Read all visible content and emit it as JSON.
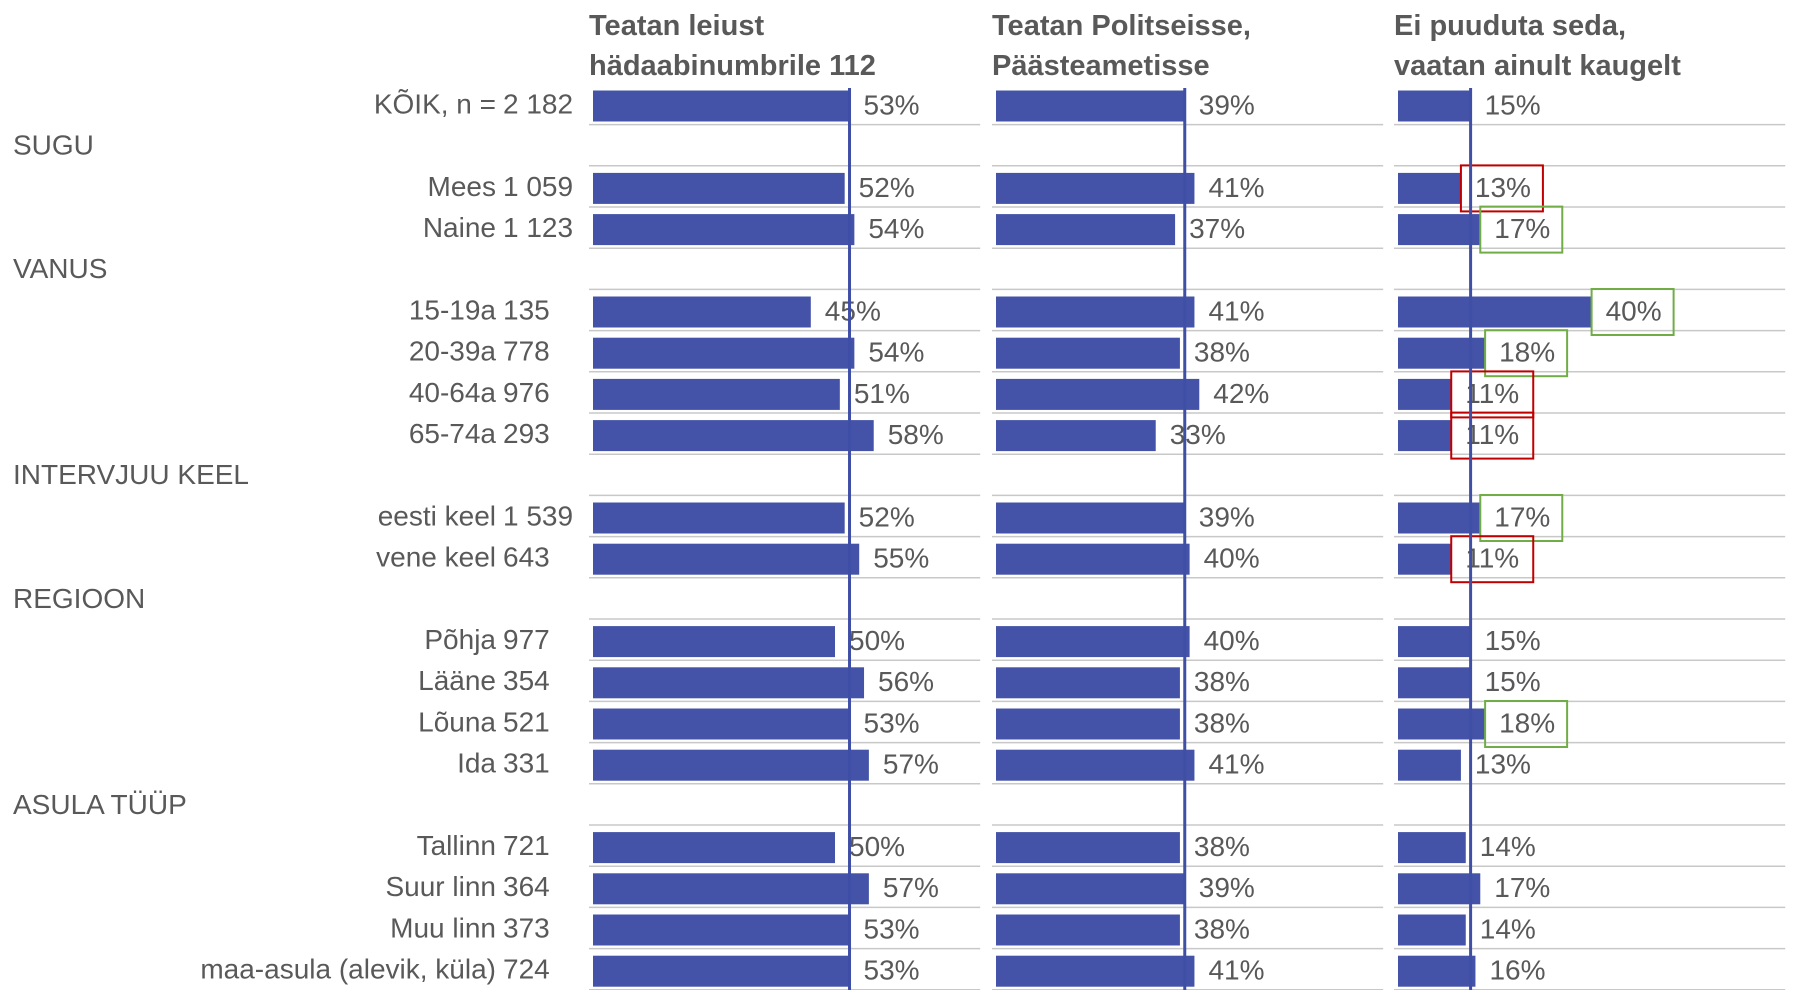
{
  "chart_data": {
    "type": "bar",
    "categories": [
      "KÕIK, n =",
      "SUGU",
      "Mees",
      "Naine",
      "VANUS",
      "15-19a",
      "20-39a",
      "40-64a",
      "65-74a",
      "INTERVJUU KEEL",
      "eesti keel",
      "vene keel",
      "REGIOON",
      "Põhja",
      "Lääne",
      "Lõuna",
      "Ida",
      "ASULA TÜÜP",
      "Tallinn",
      "Suur linn",
      "Muu linn",
      "maa-asula (alevik, küla)"
    ],
    "n": [
      "2 182",
      null,
      "1 059",
      "1 123",
      null,
      "135",
      "778",
      "976",
      "293",
      null,
      "1 539",
      "643",
      null,
      "977",
      "354",
      "521",
      "331",
      null,
      "721",
      "364",
      "373",
      "724"
    ],
    "xlim": [
      0,
      80
    ],
    "series": [
      {
        "name": "Teatan leiust\nhädaabinumbrile 112",
        "color": "#4453a7",
        "values": [
          53,
          null,
          52,
          54,
          null,
          45,
          54,
          51,
          58,
          null,
          52,
          55,
          null,
          50,
          56,
          53,
          57,
          null,
          50,
          57,
          53,
          53
        ],
        "value_labels": [
          "53%",
          null,
          "52%",
          "54%",
          null,
          "45%",
          "54%",
          "51%",
          "58%",
          null,
          "52%",
          "55%",
          null,
          "50%",
          "56%",
          "53%",
          "57%",
          null,
          "50%",
          "57%",
          "53%",
          "53%"
        ]
      },
      {
        "name": "Teatan Politseisse,\nPäästeametisse",
        "color": "#4453a7",
        "values": [
          39,
          null,
          41,
          37,
          null,
          41,
          38,
          42,
          33,
          null,
          39,
          40,
          null,
          40,
          38,
          38,
          41,
          null,
          38,
          39,
          38,
          41
        ],
        "value_labels": [
          "39%",
          null,
          "41%",
          "37%",
          null,
          "41%",
          "38%",
          "42%",
          "33%",
          null,
          "39%",
          "40%",
          null,
          "40%",
          "38%",
          "38%",
          "41%",
          null,
          "38%",
          "39%",
          "38%",
          "41%"
        ]
      },
      {
        "name": "Ei puuduta seda,\nvaatan ainult kaugelt",
        "color": "#4453a7",
        "values": [
          15,
          null,
          13,
          17,
          null,
          40,
          18,
          11,
          11,
          null,
          17,
          11,
          null,
          15,
          15,
          18,
          13,
          null,
          14,
          17,
          14,
          16
        ],
        "value_labels": [
          "15%",
          null,
          "13%",
          "17%",
          null,
          "40%",
          "18%",
          "11%",
          "11%",
          null,
          "17%",
          "11%",
          null,
          "15%",
          "15%",
          "18%",
          "13%",
          null,
          "14%",
          "17%",
          "14%",
          "16%"
        ],
        "box_colors": [
          null,
          null,
          "#c00000",
          "#70ad47",
          null,
          "#70ad47",
          "#70ad47",
          "#c00000",
          "#c00000",
          null,
          "#70ad47",
          "#c00000",
          null,
          null,
          null,
          "#70ad47",
          null,
          null,
          null,
          null,
          null,
          null
        ]
      }
    ]
  }
}
